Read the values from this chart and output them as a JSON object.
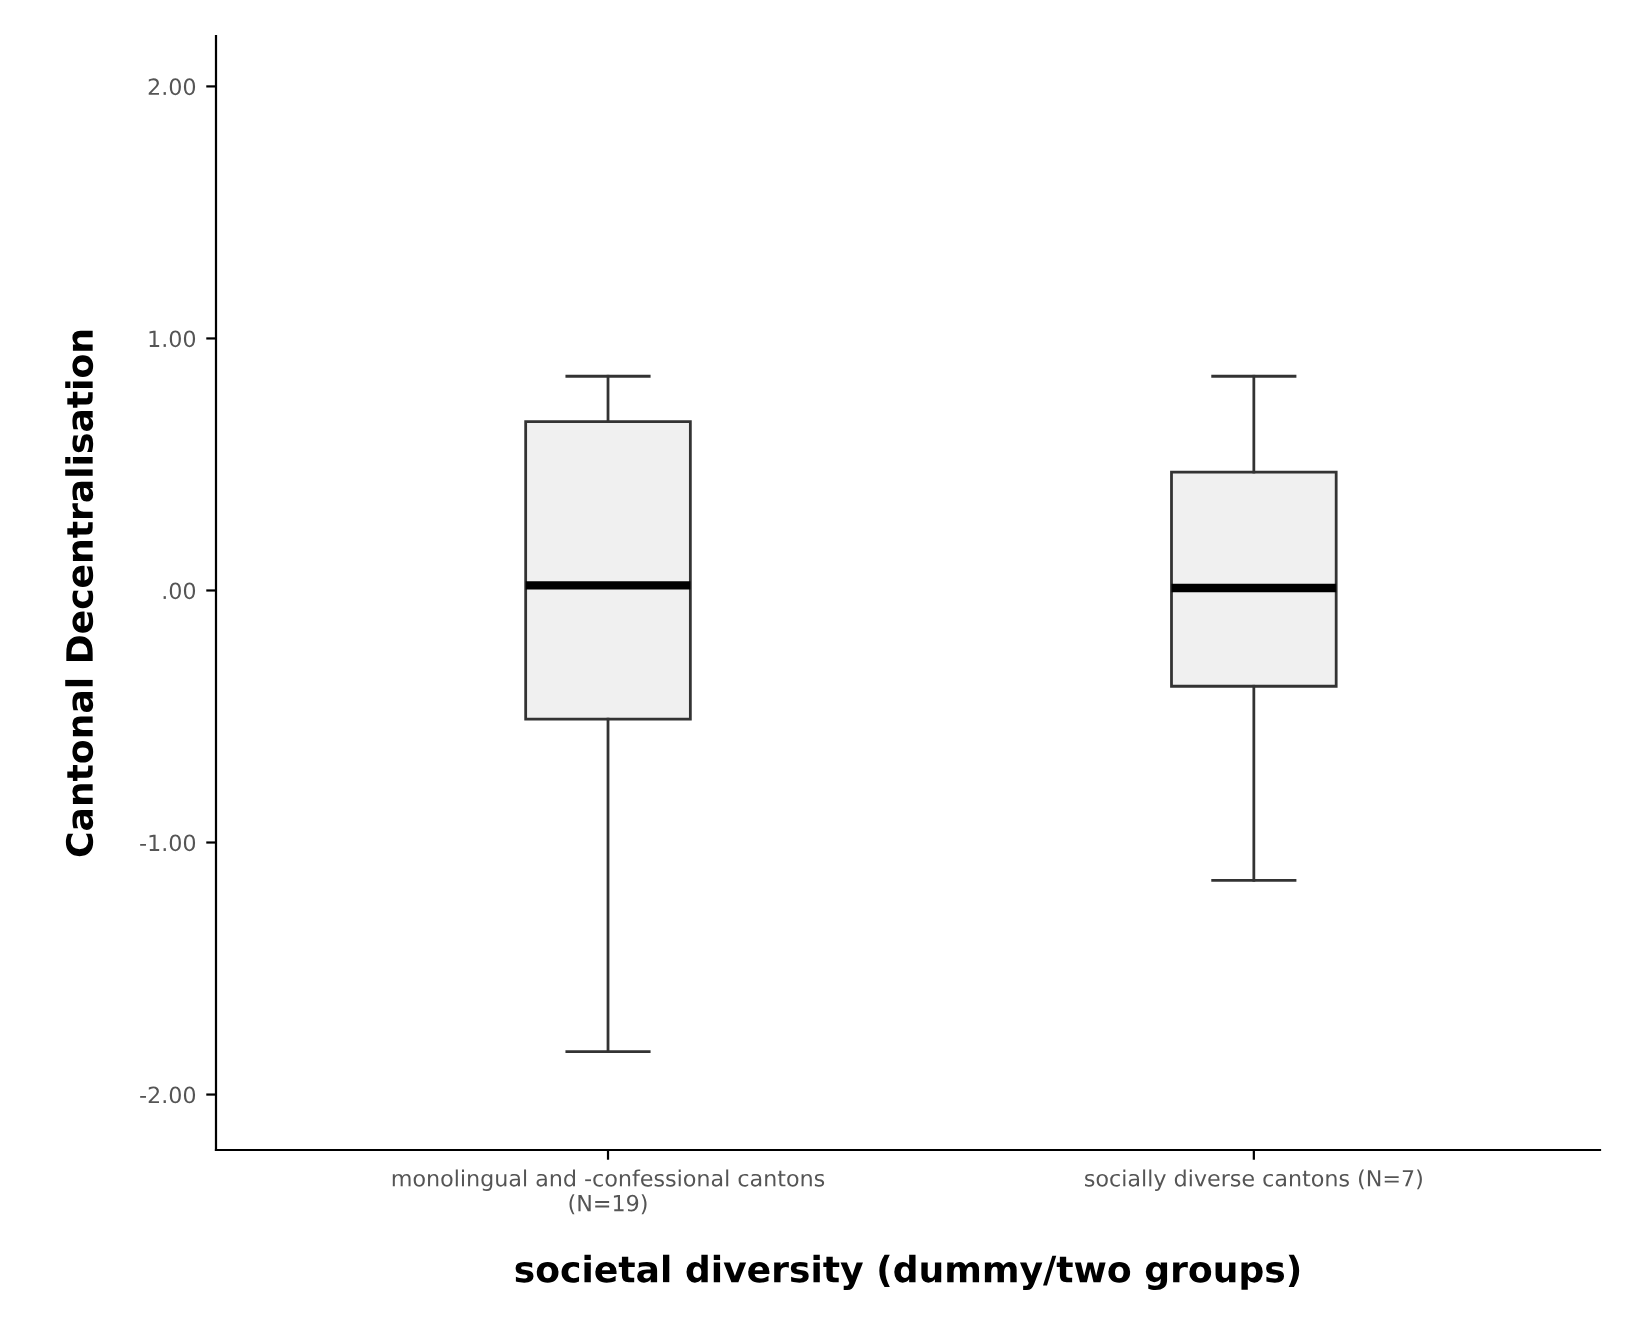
{
  "chart_data": {
    "type": "box",
    "xlabel": "societal diversity (dummy/two groups)",
    "ylabel": "Cantonal Decentralisation",
    "categories": [
      "monolingual and -confessional cantons\n(N=19)",
      "socially diverse cantons (N=7)"
    ],
    "boxes": [
      {
        "low": -1.83,
        "q1": -0.51,
        "median": 0.02,
        "q3": 0.67,
        "high": 0.85
      },
      {
        "low": -1.15,
        "q1": -0.38,
        "median": 0.01,
        "q3": 0.47,
        "high": 0.85
      }
    ],
    "color": "#f0f0f0",
    "ylim": [
      -2.22,
      2.2
    ],
    "yticks": [
      {
        "value": 2,
        "label": "2.00"
      },
      {
        "value": 1,
        "label": "1.00"
      },
      {
        "value": 0,
        "label": ".00"
      },
      {
        "value": -1,
        "label": "-1.00"
      },
      {
        "value": -2,
        "label": "-2.00"
      }
    ],
    "grid": false
  }
}
